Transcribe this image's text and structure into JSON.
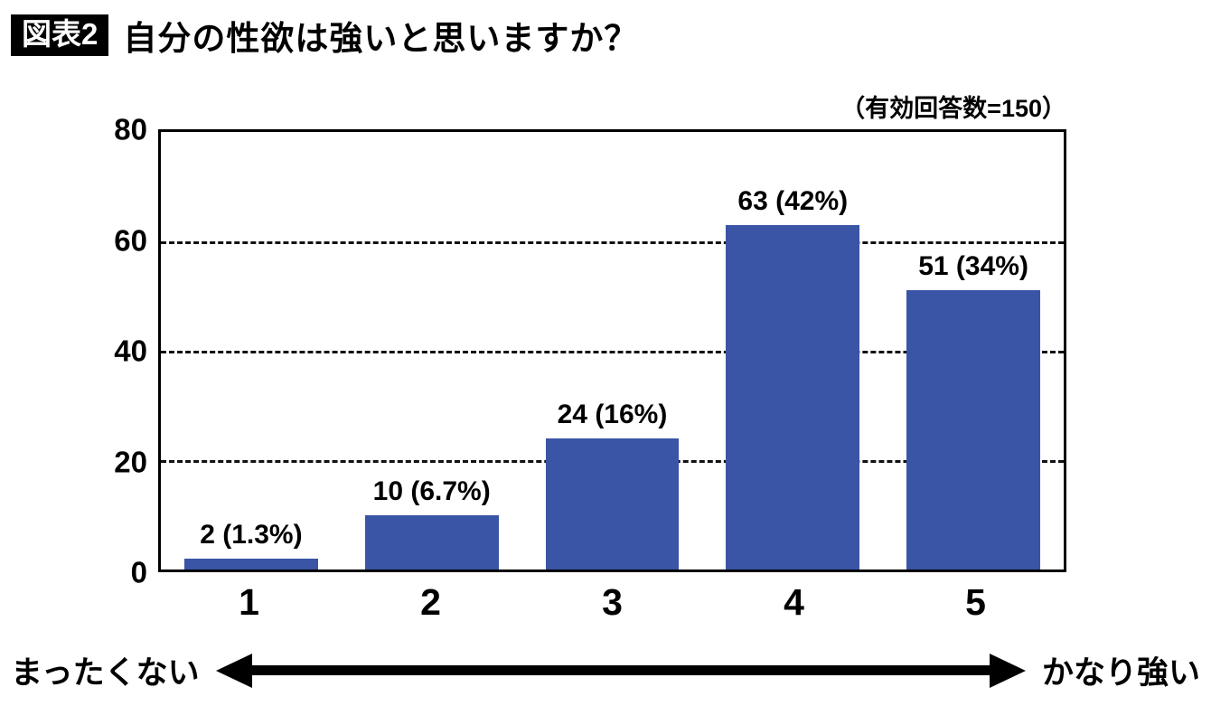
{
  "header": {
    "badge": "図表2",
    "title": "自分の性欲は強いと思いますか？"
  },
  "chart_data": {
    "type": "bar",
    "title": "自分の性欲は強いと思いますか？",
    "note": "（有効回答数=150）",
    "categories": [
      "1",
      "2",
      "3",
      "4",
      "5"
    ],
    "values": [
      2,
      10,
      24,
      63,
      51
    ],
    "labels": [
      "2 (1.3%)",
      "10 (6.7%)",
      "24 (16%)",
      "63 (42%)",
      "51 (34%)"
    ],
    "xlabel": "",
    "ylabel": "",
    "ylim": [
      0,
      80
    ],
    "yticks": [
      0,
      20,
      40,
      60,
      80
    ],
    "gridlines": [
      20,
      40,
      60
    ],
    "grid_style": "dashed-horizontal",
    "legend": "none",
    "bar_color": "#3a55a6",
    "scale_left_label": "まったくない",
    "scale_right_label": "かなり強い"
  },
  "scale": {
    "left_label": "まったくない",
    "right_label": "かなり強い"
  }
}
